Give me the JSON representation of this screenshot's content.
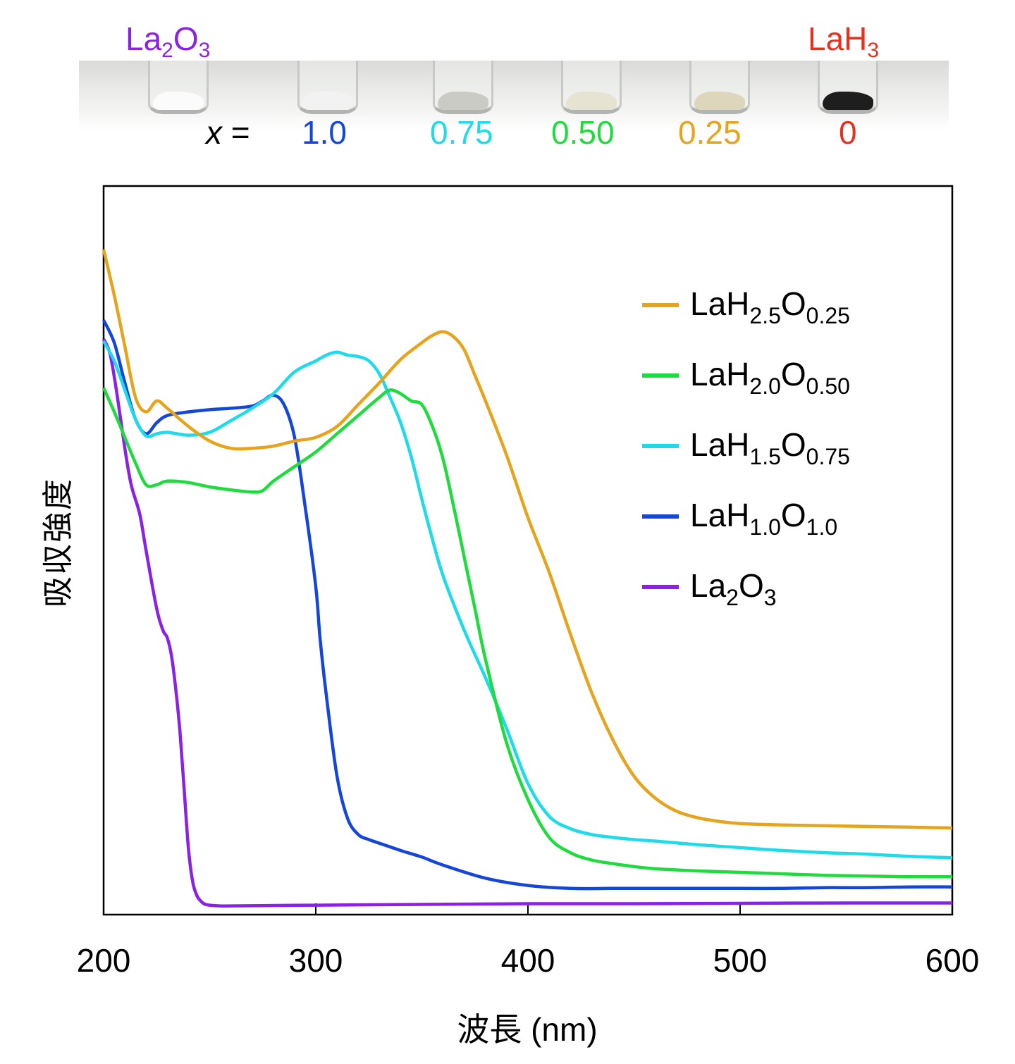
{
  "header": {
    "left_label": {
      "base": "La",
      "sub1": "2",
      "mid": "O",
      "sub2": "3"
    },
    "right_label": {
      "base": "LaH",
      "sub1": "3"
    },
    "x_prefix_var": "x",
    "x_prefix_eq": "=",
    "samples": [
      {
        "x": "1.0",
        "color": "#1446dc",
        "powder": "#f2f2f2"
      },
      {
        "x": "0.75",
        "color": "#1ddbe8",
        "powder": "#c9cbc4"
      },
      {
        "x": "0.50",
        "color": "#1fdc3e",
        "powder": "#e7e3d2"
      },
      {
        "x": "0.25",
        "color": "#e6a41c",
        "powder": "#ddd6bd"
      },
      {
        "x": "0",
        "color": "#e8301e",
        "powder": "#1e1e1e"
      }
    ],
    "la2o3_color": "#8a22e6",
    "lah3_color": "#e8301e",
    "la2o3_powder": "#fbfbfb"
  },
  "chart_data": {
    "type": "line",
    "title": "",
    "xlabel": "波長 (nm)",
    "ylabel": "吸収強度",
    "xlim": [
      200,
      600
    ],
    "ylim": [
      0,
      100
    ],
    "xticks": [
      200,
      300,
      400,
      500,
      600
    ],
    "xtick_labels": [
      "200",
      "300",
      "400",
      "500",
      "600"
    ],
    "yticks": [],
    "grid": false,
    "legend_position": "top-right",
    "series": [
      {
        "name": "LaH2.5O0.25",
        "label": {
          "base": "LaH",
          "sub1": "2.5",
          "mid": "O",
          "sub2": "0.25"
        },
        "color": "#e6a41c",
        "x": [
          200,
          205,
          210,
          215,
          220,
          225,
          230,
          240,
          250,
          260,
          270,
          280,
          290,
          300,
          310,
          320,
          330,
          340,
          350,
          355,
          360,
          365,
          370,
          375,
          380,
          390,
          400,
          410,
          420,
          430,
          440,
          450,
          460,
          470,
          480,
          490,
          500,
          520,
          540,
          560,
          580,
          600
        ],
        "y": [
          91.3,
          85,
          78,
          71,
          69,
          70.5,
          69.5,
          67,
          65,
          64,
          64,
          64.3,
          65,
          65.5,
          67,
          70,
          73,
          76.2,
          78.5,
          79.5,
          80,
          79.3,
          77.5,
          74,
          70.5,
          63,
          54.5,
          47,
          38.5,
          30.5,
          24,
          19,
          16,
          14.2,
          13.3,
          12.8,
          12.5,
          12.3,
          12.2,
          12.1,
          12,
          11.9
        ]
      },
      {
        "name": "LaH2.0O0.50",
        "label": {
          "base": "LaH",
          "sub1": "2.0",
          "mid": "O",
          "sub2": "0.50"
        },
        "color": "#1fdc3e",
        "x": [
          200,
          205,
          210,
          215,
          220,
          225,
          230,
          240,
          250,
          260,
          270,
          275,
          280,
          290,
          300,
          310,
          320,
          330,
          335,
          340,
          345,
          350,
          355,
          360,
          365,
          370,
          375,
          380,
          390,
          400,
          410,
          420,
          430,
          440,
          450,
          460,
          480,
          500,
          520,
          540,
          560,
          580,
          600
        ],
        "y": [
          72.3,
          69,
          65.5,
          62,
          59,
          59,
          59.5,
          59.3,
          58.7,
          58.3,
          58,
          58.2,
          59.5,
          61.5,
          63.5,
          66,
          68.5,
          71,
          72,
          71.5,
          70.5,
          70,
          67,
          62.5,
          56,
          49,
          42,
          35,
          23.5,
          15.8,
          10.6,
          8.5,
          7.5,
          7,
          6.6,
          6.3,
          6,
          5.8,
          5.6,
          5.4,
          5.3,
          5.2,
          5.2
        ]
      },
      {
        "name": "LaH1.5O0.75",
        "label": {
          "base": "LaH",
          "sub1": "1.5",
          "mid": "O",
          "sub2": "0.75"
        },
        "color": "#1ddbe8",
        "x": [
          200,
          205,
          210,
          215,
          220,
          225,
          230,
          240,
          250,
          260,
          270,
          280,
          290,
          300,
          305,
          310,
          315,
          320,
          325,
          330,
          335,
          340,
          345,
          350,
          355,
          360,
          370,
          380,
          390,
          400,
          410,
          420,
          430,
          440,
          450,
          460,
          480,
          500,
          520,
          540,
          560,
          580,
          600
        ],
        "y": [
          78.7,
          76,
          72,
          68,
          65.7,
          66,
          66.2,
          65.8,
          66.2,
          67.8,
          69.5,
          71.5,
          74.5,
          76,
          76.8,
          77.2,
          76.8,
          76.6,
          76,
          74.2,
          71,
          67.5,
          62.8,
          57,
          51.5,
          46.5,
          39,
          32.5,
          25.5,
          18,
          13.5,
          11.8,
          11,
          10.6,
          10.3,
          10.1,
          9.6,
          9.2,
          8.8,
          8.5,
          8.3,
          8,
          7.8
        ]
      },
      {
        "name": "LaH1.0O1.0",
        "label": {
          "base": "LaH",
          "sub1": "1.0",
          "mid": "O",
          "sub2": "1.0"
        },
        "color": "#1446dc",
        "x": [
          200,
          205,
          210,
          215,
          220,
          225,
          230,
          240,
          250,
          260,
          270,
          275,
          280,
          285,
          290,
          295,
          300,
          302,
          305,
          310,
          315,
          320,
          325,
          330,
          340,
          350,
          360,
          380,
          400,
          420,
          440,
          460,
          480,
          500,
          520,
          540,
          560,
          580,
          600
        ],
        "y": [
          81.6,
          78.5,
          73,
          68,
          66,
          67.5,
          68.5,
          69,
          69.3,
          69.5,
          69.8,
          70.5,
          71.3,
          70,
          65.5,
          56,
          45,
          38,
          30,
          19,
          13.2,
          11,
          10.3,
          9.8,
          8.8,
          7.9,
          6.8,
          5,
          4,
          3.6,
          3.6,
          3.6,
          3.6,
          3.6,
          3.6,
          3.7,
          3.7,
          3.8,
          3.8
        ]
      },
      {
        "name": "La2O3",
        "label": {
          "base": "La",
          "sub1": "2",
          "mid": "O",
          "sub2": "3"
        },
        "color": "#8a22e6",
        "x": [
          200,
          203,
          206,
          210,
          213,
          217,
          220,
          225,
          228,
          230,
          232,
          234,
          236,
          238,
          240,
          242,
          244,
          246,
          248,
          250,
          255,
          260,
          300,
          350,
          400,
          450,
          500,
          550,
          600
        ],
        "y": [
          79,
          77,
          72,
          64,
          59,
          55,
          50,
          42,
          39,
          38,
          35.5,
          31,
          25,
          17,
          9,
          4.5,
          2.6,
          1.8,
          1.4,
          1.3,
          1.2,
          1.2,
          1.3,
          1.4,
          1.5,
          1.5,
          1.55,
          1.6,
          1.6
        ]
      }
    ]
  }
}
